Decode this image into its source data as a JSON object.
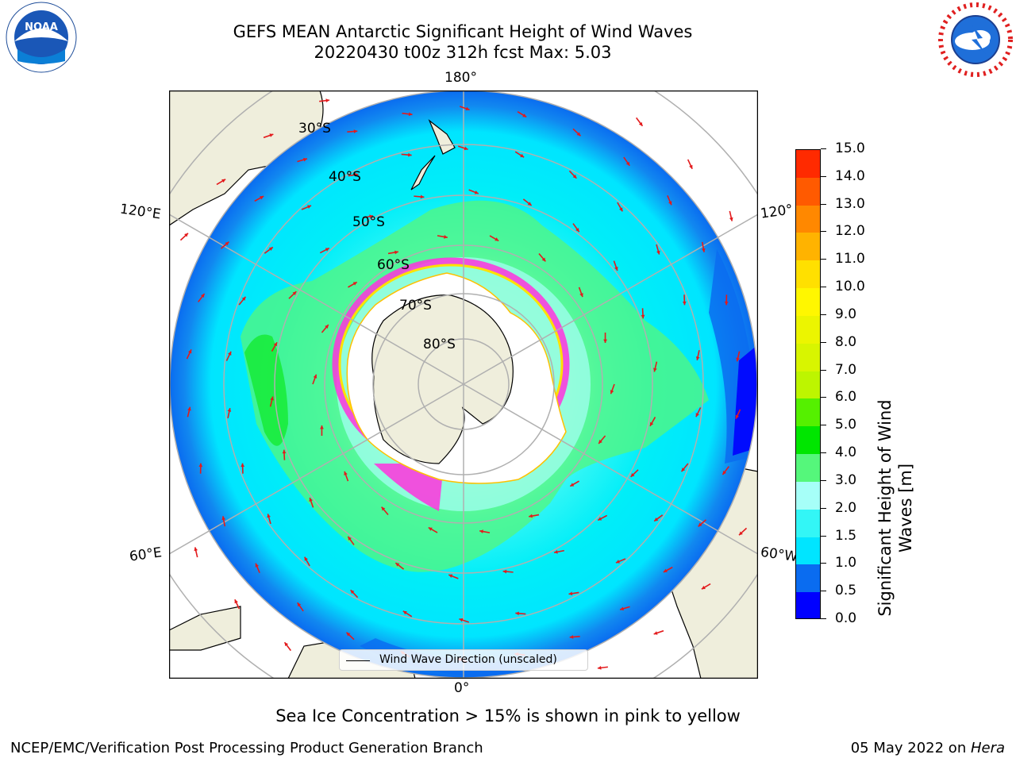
{
  "title": {
    "line1": "GEFS MEAN Antarctic Significant Height of Wind Waves",
    "line2": "20220430 t00z 312h fcst   Max: 5.03"
  },
  "map": {
    "projection": "south-polar-stereographic",
    "lon_labels": {
      "top": "180°",
      "bottom": "0°",
      "left_upper": "120°E",
      "left_lower": "60°E",
      "right_upper": "120°",
      "right_lower": "60°W"
    },
    "lat_labels": [
      "30°S",
      "40°S",
      "50°S",
      "60°S",
      "70°S",
      "80°S"
    ],
    "colors": {
      "land": "#efeedc",
      "ice_shelf": "#ffffff",
      "arrow": "#e31a1c",
      "grid": "#b0b0b0",
      "sea_ice": "#ff33dd"
    }
  },
  "legend": {
    "label": "Wind Wave Direction (unscaled)"
  },
  "colorbar": {
    "label_line1": "Significant Height of Wind",
    "label_line2": "Waves [m]",
    "ticks": [
      "0.0",
      "0.5",
      "1.0",
      "1.5",
      "2.0",
      "3.0",
      "4.0",
      "5.0",
      "6.0",
      "7.0",
      "8.0",
      "9.0",
      "10.0",
      "11.0",
      "12.0",
      "13.0",
      "14.0",
      "15.0"
    ],
    "colors": [
      "#0000ff",
      "#0a6cf0",
      "#00e5ff",
      "#33f6f6",
      "#a6fff8",
      "#55f77b",
      "#00e600",
      "#55f000",
      "#bdf500",
      "#d8f500",
      "#ecf500",
      "#fff700",
      "#ffe000",
      "#ffb300",
      "#ff8800",
      "#ff5a00",
      "#ff2a00"
    ]
  },
  "subnote": "Sea Ice Concentration > 15% is shown in pink to yellow",
  "footer": {
    "left": "NCEP/EMC/Verification Post Processing Product Generation Branch",
    "right_date": "05 May 2022 on ",
    "right_host": "Hera"
  },
  "logos": {
    "left": "NOAA",
    "right": "NATIONAL WEATHER SERVICE"
  }
}
